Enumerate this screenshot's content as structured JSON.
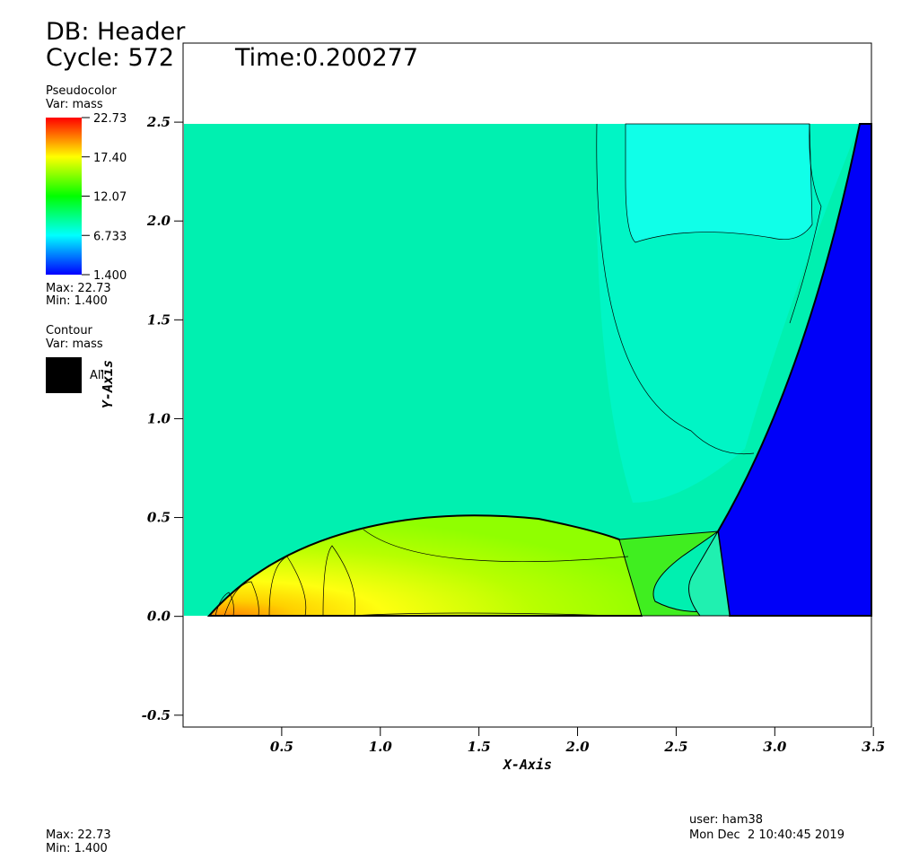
{
  "header": {
    "db": "DB: Header",
    "cycle": "Cycle: 572",
    "time": "Time:0.200277"
  },
  "legend": {
    "pseudocolor": {
      "title": "Pseudocolor",
      "var": "Var: mass",
      "ticks": [
        "22.73",
        "17.40",
        "12.07",
        "6.733",
        "1.400"
      ],
      "max": "Max:  22.73",
      "min": "Min:  1.400"
    },
    "contour": {
      "title": "Contour",
      "var": "Var: mass",
      "level": "All"
    }
  },
  "chart_data": {
    "type": "field",
    "x_label": "X-Axis",
    "y_label": "Y-Axis",
    "xlim": [
      0,
      3.49
    ],
    "ylim": [
      -0.56,
      2.9
    ],
    "xticks": [
      0.5,
      {
        "value": 1,
        "label": "1.0"
      },
      1.5,
      {
        "value": 2,
        "label": "2.0"
      },
      2.5,
      {
        "value": 3,
        "label": "3.0"
      },
      3.5
    ],
    "yticks": [
      -0.5,
      {
        "value": 0,
        "label": "0.0"
      },
      0.5,
      {
        "value": 1,
        "label": "1.0"
      },
      1.5,
      {
        "value": 2,
        "label": "2.0"
      },
      2.5
    ]
  },
  "footer": {
    "max": "Max:  22.73",
    "min": "Min:  1.400",
    "user": "user: ham38",
    "date": "Mon Dec  2 10:40:45 2019"
  }
}
